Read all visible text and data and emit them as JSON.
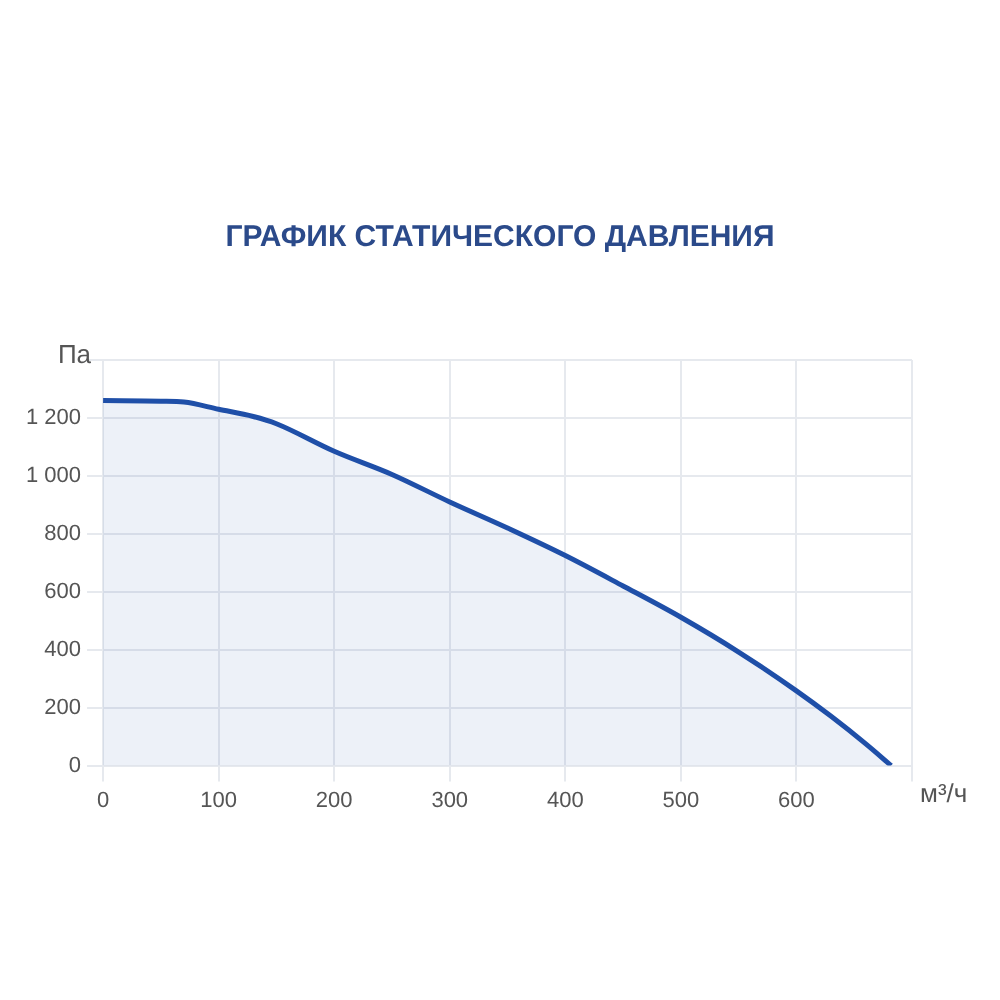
{
  "chart_data": {
    "type": "area",
    "title": "ГРАФИК СТАТИЧЕСКОГО ДАВЛЕНИЯ",
    "xlabel": "м³/ч",
    "ylabel": "Па",
    "x": [
      0,
      50,
      70,
      100,
      130,
      150,
      200,
      250,
      300,
      350,
      400,
      450,
      500,
      550,
      600,
      630,
      660,
      682
    ],
    "series": [
      {
        "color": "#1f4fa8",
        "values": [
          1260,
          1258,
          1255,
          1230,
          1205,
          1180,
          1085,
          1005,
          910,
          820,
          725,
          620,
          512,
          392,
          258,
          170,
          75,
          0
        ]
      }
    ],
    "xlim": [
      0,
      700
    ],
    "xticks": [
      0,
      100,
      200,
      300,
      400,
      500,
      600,
      {
        "value": 700,
        "label": null
      }
    ],
    "ylim": [
      0,
      1400
    ],
    "yticks": [
      0,
      {
        "value": 200,
        "label": "200"
      },
      {
        "value": 400,
        "label": "400"
      },
      {
        "value": 600,
        "label": "600"
      },
      {
        "value": 800,
        "label": "800"
      },
      {
        "value": 1000,
        "label": "1 000"
      },
      {
        "value": 1200,
        "label": "1 200"
      },
      {
        "value": 1400,
        "label": null
      }
    ],
    "grid": true,
    "legend": false,
    "marker": "none",
    "line_style": "solid"
  }
}
